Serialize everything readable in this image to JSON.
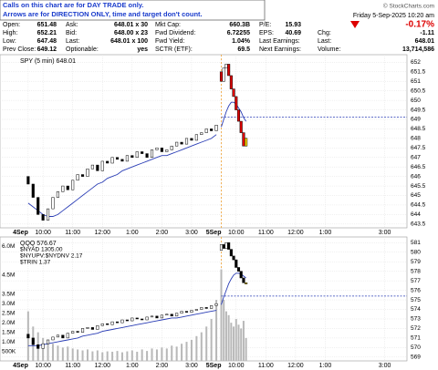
{
  "notice": [
    "Calls on this chart are for DAY TRADE only.",
    "Arrows are for DIRECTION ONLY, time and target don't count."
  ],
  "header": {
    "watermark": "© StockCharts.com",
    "timestamp": "Friday  5-Sep-2025  10:20 am",
    "change_pct": "-0.17%",
    "rows": [
      [
        [
          "Open:",
          "651.48"
        ],
        [
          "Ask:",
          "648.01 x 30"
        ],
        [
          "Mkt Cap:",
          "660.3B"
        ],
        [
          "P/E:",
          "15.93"
        ]
      ],
      [
        [
          "High:",
          "652.21"
        ],
        [
          "Bid:",
          "648.00 x 23"
        ],
        [
          "Fwd Dividend:",
          "6.72255"
        ],
        [
          "EPS:",
          "40.69"
        ],
        [
          "Chg:",
          "-1.11"
        ]
      ],
      [
        [
          "Low:",
          "647.48"
        ],
        [
          "Last:",
          "648.01 x 100"
        ],
        [
          "Fwd Yield:",
          "1.04%"
        ],
        [
          "Last Earnings:",
          ""
        ],
        [
          "Last:",
          "648.01"
        ]
      ],
      [
        [
          "Prev Close:",
          "649.12"
        ],
        [
          "Optionable:",
          "yes"
        ],
        [
          "SCTR (ETF):",
          "69.5"
        ],
        [
          "Next Earnings:",
          ""
        ],
        [
          "Volume:",
          "13,714,586"
        ]
      ]
    ]
  },
  "chart_data": [
    {
      "type": "candlestick",
      "title": "SPY (5 min) 648.01",
      "legend": [],
      "xlim": [
        -4,
        153
      ],
      "ylim": [
        643.3,
        652.4
      ],
      "grid": true,
      "reference_line": 649.12,
      "reference_color": "#2a3db5",
      "session_line_color": "#f0a030",
      "ma_color": "#2a3db5",
      "highlight_color": "#ffd800",
      "yticks": [
        643.5,
        644.0,
        644.5,
        645.0,
        645.5,
        646.0,
        646.5,
        647.0,
        647.5,
        648.0,
        648.5,
        649.0,
        649.5,
        650.0,
        650.5,
        651.0,
        651.5,
        652.0
      ],
      "date_ticks": [
        {
          "value": 0,
          "label": "4Sep"
        },
        {
          "value": 78,
          "label": "5Sep"
        }
      ],
      "xticks": [
        {
          "value": 6,
          "label": "10:00"
        },
        {
          "value": 18,
          "label": "11:00"
        },
        {
          "value": 30,
          "label": "12:00"
        },
        {
          "value": 42,
          "label": "1:00"
        },
        {
          "value": 54,
          "label": "2:00"
        },
        {
          "value": 66,
          "label": "3:00"
        },
        {
          "value": 84,
          "label": "10:00"
        },
        {
          "value": 96,
          "label": "11:00"
        },
        {
          "value": 108,
          "label": "12:00"
        },
        {
          "value": 120,
          "label": "1:00"
        },
        {
          "value": 144,
          "label": "3:00"
        }
      ],
      "series": [
        {
          "up_color": "#ffffff",
          "down_color": "#000000",
          "x": [
            0,
            2,
            4,
            6,
            8,
            10,
            12,
            14,
            16,
            18,
            20,
            22,
            24,
            26,
            28,
            30,
            32,
            34,
            36,
            38,
            40,
            42,
            44,
            46,
            48,
            50,
            52,
            54,
            56,
            58,
            60,
            62,
            64,
            66,
            68,
            70,
            72,
            74,
            76
          ],
          "open": [
            646.0,
            645.6,
            644.9,
            644.0,
            643.7,
            644.3,
            644.9,
            645.2,
            645.5,
            645.3,
            645.8,
            646.1,
            646.0,
            646.4,
            646.6,
            646.3,
            646.8,
            646.7,
            647.0,
            646.9,
            646.8,
            647.1,
            647.0,
            647.3,
            647.2,
            647.0,
            647.4,
            647.5,
            647.3,
            647.4,
            647.6,
            647.8,
            647.7,
            648.0,
            647.9,
            648.2,
            648.3,
            648.5,
            648.4
          ],
          "close": [
            645.6,
            644.9,
            644.0,
            643.7,
            644.3,
            644.9,
            645.2,
            645.5,
            645.3,
            645.8,
            646.1,
            646.0,
            646.4,
            646.6,
            646.3,
            646.8,
            646.7,
            647.0,
            646.9,
            646.8,
            647.1,
            647.0,
            647.3,
            647.2,
            647.0,
            647.4,
            647.5,
            647.3,
            647.4,
            647.6,
            647.8,
            647.7,
            648.0,
            647.9,
            648.2,
            648.3,
            648.5,
            648.4,
            648.7
          ],
          "ma": [
            644.6,
            644.4,
            644.2,
            644.0,
            643.9,
            643.9,
            644.0,
            644.2,
            644.4,
            644.6,
            644.8,
            645.0,
            645.2,
            645.4,
            645.6,
            645.7,
            645.9,
            646.0,
            646.1,
            646.3,
            646.4,
            646.5,
            646.6,
            646.7,
            646.8,
            646.9,
            647.0,
            647.1,
            647.1,
            647.2,
            647.3,
            647.4,
            647.5,
            647.6,
            647.7,
            647.8,
            647.9,
            648.0,
            648.2
          ]
        },
        {
          "up_color": "#ffffff",
          "down_color": "#e00000",
          "x": [
            78,
            79,
            80,
            81,
            82,
            83,
            84,
            85,
            86,
            87,
            88
          ],
          "open": [
            651.5,
            651.0,
            651.7,
            651.9,
            651.3,
            650.6,
            650.2,
            649.5,
            648.9,
            648.3,
            647.6
          ],
          "close": [
            651.0,
            651.7,
            651.9,
            651.3,
            650.6,
            650.2,
            649.5,
            648.9,
            648.3,
            647.6,
            648.01
          ],
          "ma": [
            648.6,
            649.0,
            649.4,
            649.7,
            649.9,
            649.9,
            649.8,
            649.6,
            649.4,
            649.1,
            648.9
          ]
        }
      ]
    },
    {
      "type": "candlestick",
      "title": "QQQ 576.67",
      "legend": [
        "$NYAD 1305.00",
        "$NYUPV:$NYDNV 2.17",
        "$TRIN 1.37"
      ],
      "xlim": [
        -4,
        153
      ],
      "ylim": [
        568.6,
        581.6
      ],
      "grid": true,
      "reference_line": 575.4,
      "reference_color": "#2a3db5",
      "session_line_color": "#f0a030",
      "ma_color": "#2a3db5",
      "highlight_color": "#ffd800",
      "yticks": [
        569,
        570,
        571,
        572,
        573,
        574,
        575,
        576,
        577,
        578,
        579,
        580,
        581
      ],
      "volume_color": "#b8b8b8",
      "volume_lim": [
        0,
        6500000
      ],
      "volume_ticks": [
        {
          "value": 500000,
          "label": "500K"
        },
        {
          "value": 1000000,
          "label": "1.0M"
        },
        {
          "value": 1500000,
          "label": "1.5M"
        },
        {
          "value": 2000000,
          "label": "2.0M"
        },
        {
          "value": 2500000,
          "label": "2.5M"
        },
        {
          "value": 3000000,
          "label": "3.0M"
        },
        {
          "value": 3500000,
          "label": "3.5M"
        },
        {
          "value": 4500000,
          "label": "4.5M"
        },
        {
          "value": 6000000,
          "label": "6.0M"
        }
      ],
      "date_ticks": [
        {
          "value": 0,
          "label": "4Sep"
        },
        {
          "value": 78,
          "label": "5Sep"
        }
      ],
      "xticks": [
        {
          "value": 6,
          "label": "10:00"
        },
        {
          "value": 18,
          "label": "11:00"
        },
        {
          "value": 30,
          "label": "12:00"
        },
        {
          "value": 42,
          "label": "1:00"
        },
        {
          "value": 54,
          "label": "2:00"
        },
        {
          "value": 66,
          "label": "3:00"
        },
        {
          "value": 84,
          "label": "10:00"
        },
        {
          "value": 96,
          "label": "11:00"
        },
        {
          "value": 108,
          "label": "12:00"
        },
        {
          "value": 120,
          "label": "1:00"
        },
        {
          "value": 144,
          "label": "3:00"
        }
      ],
      "series": [
        {
          "up_color": "#ffffff",
          "down_color": "#000000",
          "x": [
            0,
            2,
            4,
            6,
            8,
            10,
            12,
            14,
            16,
            18,
            20,
            22,
            24,
            26,
            28,
            30,
            32,
            34,
            36,
            38,
            40,
            42,
            44,
            46,
            48,
            50,
            52,
            54,
            56,
            58,
            60,
            62,
            64,
            66,
            68,
            70,
            72,
            74,
            76
          ],
          "open": [
            571.4,
            571.0,
            570.3,
            569.9,
            570.4,
            570.8,
            571.1,
            571.3,
            571.0,
            571.5,
            571.7,
            571.6,
            572.0,
            572.1,
            571.9,
            572.3,
            572.5,
            572.4,
            572.7,
            572.6,
            572.9,
            572.8,
            573.1,
            573.0,
            572.9,
            573.2,
            573.3,
            573.1,
            573.4,
            573.5,
            573.3,
            573.6,
            573.8,
            573.7,
            573.9,
            574.0,
            574.2,
            574.1,
            574.4
          ],
          "close": [
            571.0,
            570.3,
            569.9,
            570.4,
            570.8,
            571.1,
            571.3,
            571.0,
            571.5,
            571.7,
            571.6,
            572.0,
            572.1,
            571.9,
            572.3,
            572.5,
            572.4,
            572.7,
            572.6,
            572.9,
            572.8,
            573.1,
            573.0,
            572.9,
            573.2,
            573.3,
            573.1,
            573.4,
            573.5,
            573.3,
            573.6,
            573.8,
            573.7,
            573.9,
            574.0,
            574.2,
            574.1,
            574.4,
            574.6
          ],
          "ma": [
            570.2,
            570.2,
            570.2,
            570.3,
            570.4,
            570.5,
            570.6,
            570.7,
            570.8,
            570.9,
            571.0,
            571.2,
            571.3,
            571.4,
            571.5,
            571.7,
            571.8,
            571.9,
            572.0,
            572.1,
            572.2,
            572.3,
            572.4,
            572.5,
            572.6,
            572.7,
            572.8,
            572.9,
            573.0,
            573.1,
            573.1,
            573.2,
            573.3,
            573.4,
            573.5,
            573.6,
            573.7,
            573.8,
            573.9
          ],
          "volume": [
            2600000,
            1800000,
            1500000,
            1200000,
            1000000,
            900000,
            800000,
            700000,
            750000,
            650000,
            600000,
            550000,
            600000,
            500000,
            550000,
            450000,
            500000,
            480000,
            520000,
            450000,
            500000,
            550000,
            480000,
            600000,
            520000,
            650000,
            600000,
            700000,
            650000,
            800000,
            750000,
            900000,
            1000000,
            1100000,
            1300000,
            1500000,
            1800000,
            2200000,
            3200000
          ]
        },
        {
          "up_color": "#ffffff",
          "down_color": "#000000",
          "x": [
            78,
            79,
            80,
            81,
            82,
            83,
            84,
            85,
            86,
            87,
            88
          ],
          "open": [
            580.2,
            580.8,
            580.4,
            581.0,
            580.3,
            579.6,
            579.2,
            578.4,
            578.0,
            577.3,
            576.8
          ],
          "close": [
            580.8,
            580.4,
            581.0,
            580.3,
            579.6,
            579.2,
            578.4,
            578.0,
            577.3,
            576.8,
            576.67
          ],
          "ma": [
            574.5,
            575.3,
            576.0,
            576.7,
            577.2,
            577.6,
            577.8,
            577.8,
            577.7,
            577.5,
            577.3
          ],
          "volume": [
            4800000,
            3200000,
            2600000,
            2400000,
            2000000,
            1800000,
            2200000,
            1900000,
            1700000,
            2100000,
            1200000
          ]
        }
      ]
    }
  ]
}
